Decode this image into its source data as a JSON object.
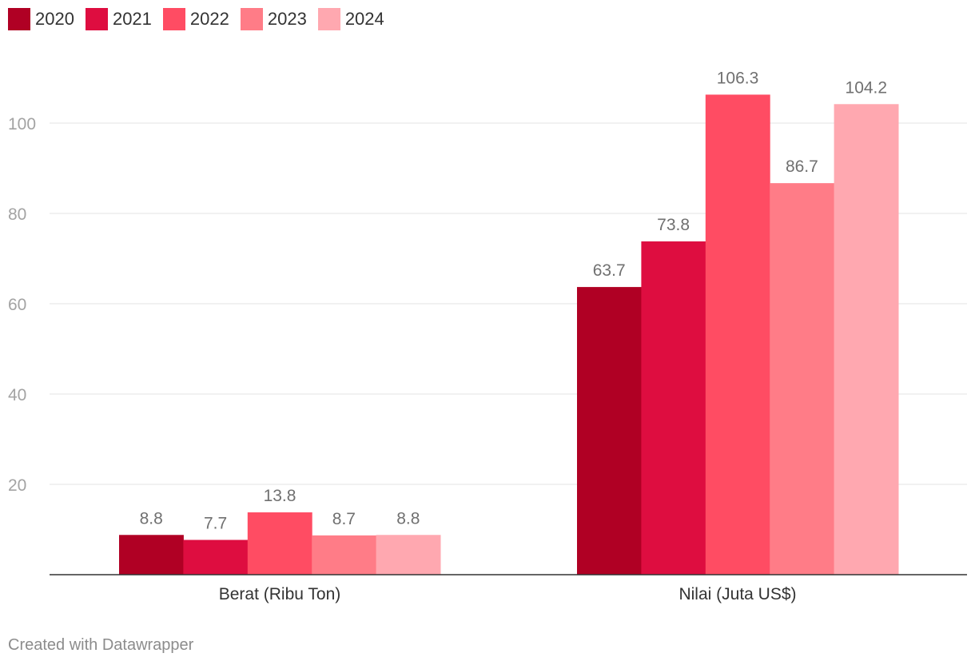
{
  "chart_data": {
    "type": "bar",
    "categories": [
      "Berat (Ribu Ton)",
      "Nilai (Juta US$)"
    ],
    "series": [
      {
        "name": "2020",
        "color": "#b00024",
        "values": [
          8.8,
          63.7
        ]
      },
      {
        "name": "2021",
        "color": "#de0d40",
        "values": [
          7.7,
          73.8
        ]
      },
      {
        "name": "2022",
        "color": "#ff4c63",
        "values": [
          13.8,
          106.3
        ]
      },
      {
        "name": "2023",
        "color": "#ff7c87",
        "values": [
          8.7,
          86.7
        ]
      },
      {
        "name": "2024",
        "color": "#ffa8b0",
        "values": [
          8.8,
          104.2
        ]
      }
    ],
    "y_ticks": [
      20,
      40,
      60,
      80,
      100
    ],
    "ylim": [
      0,
      110
    ],
    "grid": true,
    "legend_position": "top-left",
    "xlabel": "",
    "ylabel": ""
  },
  "credit": "Created with Datawrapper"
}
